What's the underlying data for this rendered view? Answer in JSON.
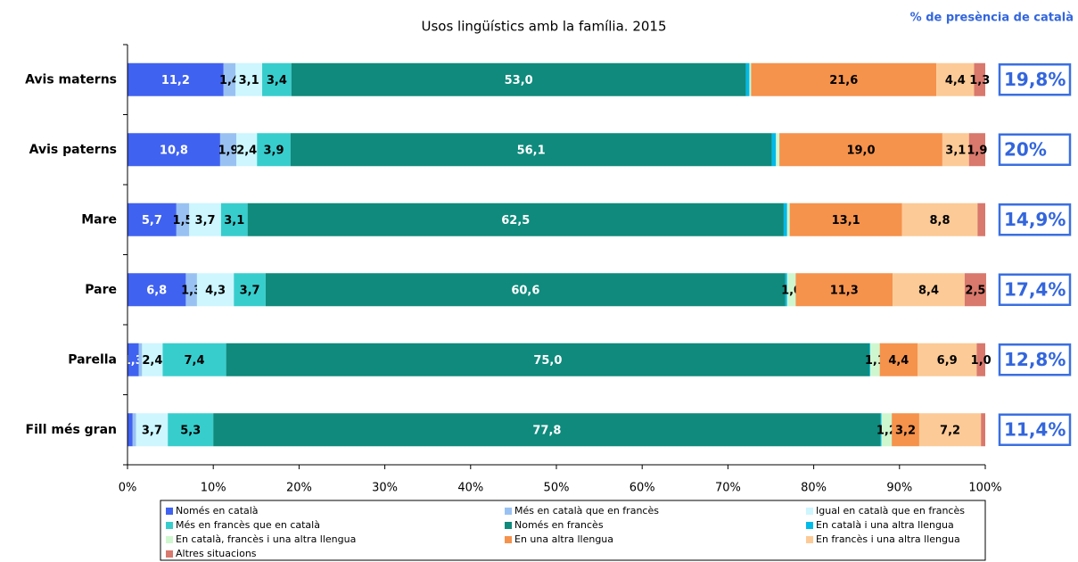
{
  "chart_data": {
    "type": "stacked-bar-horizontal",
    "title": "Usos lingüístics amb la família. 2015",
    "categories": [
      "Avis materns",
      "Avis paterns",
      "Mare",
      "Pare",
      "Parella",
      "Fill més gran"
    ],
    "series": [
      {
        "name": "Només en català",
        "color": "#4062f0",
        "values": [
          11.2,
          10.8,
          5.7,
          6.8,
          1.3,
          0.6
        ],
        "value_labels": [
          "11,2",
          "10,8",
          "5,7",
          "6,8",
          "1,3",
          null
        ]
      },
      {
        "name": "Més en català que en francès",
        "color": "#99c2f2",
        "values": [
          1.4,
          1.9,
          1.5,
          1.3,
          0.4,
          0.4
        ],
        "value_labels": [
          "1,4",
          "1,9",
          "1,5",
          "1,3",
          null,
          null
        ]
      },
      {
        "name": "Igual en català que en francès",
        "color": "#cdf6ff",
        "values": [
          3.1,
          2.4,
          3.7,
          4.3,
          2.4,
          3.7
        ],
        "value_labels": [
          "3,1",
          "2,4",
          "3,7",
          "4,3",
          "2,4",
          "3,7"
        ]
      },
      {
        "name": "Més en francès que en català",
        "color": "#37cdcd",
        "values": [
          3.4,
          3.9,
          3.1,
          3.7,
          7.4,
          5.3
        ],
        "value_labels": [
          "3,4",
          "3,9",
          "3,1",
          "3,7",
          "7,4",
          "5,3"
        ]
      },
      {
        "name": "Només en francès",
        "color": "#0f8a7c",
        "values": [
          53.0,
          56.1,
          62.5,
          60.6,
          75.0,
          77.8
        ],
        "value_labels": [
          "53,0",
          "56,1",
          "62,5",
          "60,6",
          "75,0",
          "77,8"
        ]
      },
      {
        "name": "En català i una altra llengua",
        "color": "#00bae8",
        "values": [
          0.4,
          0.5,
          0.4,
          0.2,
          0.1,
          0.1
        ],
        "value_labels": [
          null,
          null,
          null,
          null,
          null,
          null
        ]
      },
      {
        "name": "En català, francès i una altra llengua",
        "color": "#cff7cf",
        "values": [
          0.2,
          0.4,
          0.3,
          1.0,
          1.1,
          1.2
        ],
        "value_labels": [
          null,
          null,
          null,
          "1,0",
          "1,1",
          "1,2"
        ]
      },
      {
        "name": "En una altra llengua",
        "color": "#f5924c",
        "values": [
          21.6,
          19.0,
          13.1,
          11.3,
          4.4,
          3.2
        ],
        "value_labels": [
          "21,6",
          "19,0",
          "13,1",
          "11,3",
          "4,4",
          "3,2"
        ]
      },
      {
        "name": "En francès i una altra llengua",
        "color": "#fcca96",
        "values": [
          4.4,
          3.1,
          8.8,
          8.4,
          6.9,
          7.2
        ],
        "value_labels": [
          "4,4",
          "3,1",
          "8,8",
          "8,4",
          "6,9",
          "7,2"
        ]
      },
      {
        "name": "Altres situacions",
        "color": "#d9786c",
        "values": [
          1.3,
          1.9,
          0.9,
          2.5,
          1.0,
          0.5
        ],
        "value_labels": [
          "1,3",
          "1,9",
          null,
          "2,5",
          "1,0",
          null
        ]
      }
    ],
    "xlim": [
      0,
      100
    ],
    "xticks": [
      {
        "value": 0,
        "label": "0%"
      },
      {
        "value": 10,
        "label": "10%"
      },
      {
        "value": 20,
        "label": "20%"
      },
      {
        "value": 30,
        "label": "30%"
      },
      {
        "value": 40,
        "label": "40%"
      },
      {
        "value": 50,
        "label": "50%"
      },
      {
        "value": 60,
        "label": "60%"
      },
      {
        "value": 70,
        "label": "70%"
      },
      {
        "value": 80,
        "label": "80%"
      },
      {
        "value": 90,
        "label": "90%"
      },
      {
        "value": 100,
        "label": "100%"
      }
    ],
    "side_panel": {
      "title": "% de presència de català",
      "labels": [
        "19,8%",
        "20%",
        "14,9%",
        "17,4%",
        "12,8%",
        "11,4%"
      ]
    }
  }
}
